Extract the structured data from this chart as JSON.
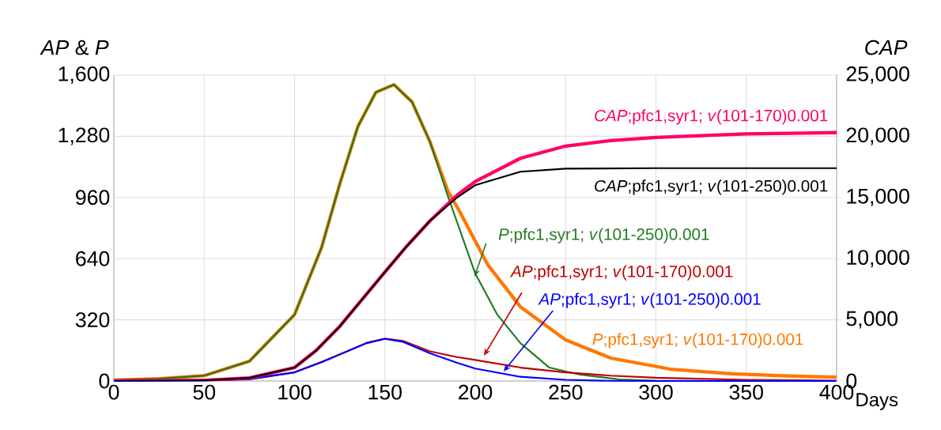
{
  "chart_data": {
    "type": "line",
    "xlabel": "Days",
    "ylabel": "*AP* & *P*",
    "y2label": "*CAP*",
    "xlim": [
      0,
      400
    ],
    "xticks": [
      0,
      50,
      100,
      150,
      200,
      250,
      300,
      350,
      400
    ],
    "ylim": [
      0,
      1600
    ],
    "yticks": [
      0,
      320,
      640,
      960,
      {
        "value": 1280,
        "label": "1,280"
      },
      {
        "value": 1600,
        "label": "1,600"
      }
    ],
    "y2lim": [
      0,
      25000
    ],
    "y2ticks": [
      0,
      {
        "value": 5000,
        "label": "5,000"
      },
      {
        "value": 10000,
        "label": "10,000"
      },
      {
        "value": 15000,
        "label": "15,000"
      },
      {
        "value": 20000,
        "label": "20,000"
      },
      {
        "value": 25000,
        "label": "25,000"
      }
    ],
    "grid": true,
    "series": [
      {
        "name": "*P*;pfc1,syr1; *v*(101-170)0.001",
        "color": "#ff7700",
        "x": [
          0,
          25,
          50,
          75,
          100,
          115,
          125,
          135,
          145,
          155,
          165,
          175,
          185,
          191,
          207,
          225,
          250,
          275,
          308,
          342,
          370,
          400
        ],
        "values": [
          5,
          12,
          28,
          103,
          347,
          700,
          1030,
          1330,
          1510,
          1550,
          1460,
          1250,
          990,
          893,
          607,
          388,
          215,
          120,
          62,
          38,
          27,
          20
        ]
      },
      {
        "name": "*P*;pfc1,syr1; *v*(101-250)0.001",
        "color": "#217a21",
        "x": [
          0,
          25,
          50,
          75,
          100,
          115,
          125,
          135,
          145,
          155,
          165,
          175,
          185,
          200,
          212,
          225,
          241,
          258,
          280,
          300,
          350,
          400
        ],
        "values": [
          5,
          12,
          28,
          103,
          347,
          700,
          1030,
          1330,
          1510,
          1550,
          1460,
          1250,
          963,
          562,
          350,
          198,
          70,
          33,
          8,
          2,
          0,
          0
        ]
      },
      {
        "name": "*AP*;pfc1,syr1; *v*(101-170)0.001",
        "color": "#c00000",
        "x": [
          0,
          50,
          75,
          100,
          115,
          125,
          140,
          150,
          160,
          175,
          190,
          200,
          225,
          250,
          275,
          300,
          350,
          400
        ],
        "values": [
          0,
          3,
          12,
          45,
          100,
          140,
          200,
          222,
          210,
          155,
          125,
          110,
          70,
          45,
          28,
          17,
          6,
          2
        ]
      },
      {
        "name": "*AP*;pfc1,syr1; *v*(101-250)0.001",
        "color": "#0000ff",
        "x": [
          0,
          50,
          75,
          100,
          115,
          125,
          140,
          150,
          160,
          175,
          190,
          200,
          225,
          250,
          275,
          300,
          350,
          400
        ],
        "values": [
          0,
          2,
          9,
          45,
          98,
          138,
          198,
          220,
          205,
          145,
          95,
          65,
          22,
          6,
          1,
          0,
          0,
          0
        ]
      },
      {
        "name": "*CAP*;pfc1,syr1; *v*(101-170)0.001",
        "color": "#ff0066",
        "axis": "y2",
        "x": [
          0,
          50,
          75,
          100,
          112,
          125,
          137,
          150,
          162,
          175,
          190,
          200,
          225,
          250,
          275,
          300,
          350,
          400
        ],
        "values": [
          0,
          50,
          250,
          1100,
          2500,
          4460,
          6600,
          8900,
          11000,
          13100,
          15200,
          16300,
          18200,
          19200,
          19650,
          19900,
          20200,
          20300
        ]
      },
      {
        "name": "*CAP*;pfc1,syr1; *v*(101-250)0.001",
        "color": "#000000",
        "axis": "y2",
        "x": [
          0,
          50,
          75,
          100,
          112,
          125,
          137,
          150,
          162,
          175,
          190,
          200,
          225,
          250,
          300,
          350,
          400
        ],
        "values": [
          0,
          50,
          250,
          1100,
          2500,
          4460,
          6600,
          8900,
          11000,
          13100,
          15000,
          16000,
          17100,
          17350,
          17400,
          17400,
          17400
        ]
      }
    ]
  }
}
